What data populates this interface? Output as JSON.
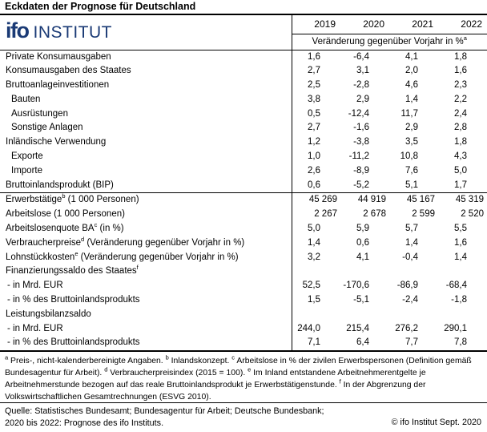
{
  "title": "Eckdaten der Prognose für Deutschland",
  "logo": {
    "bold": "ifo",
    "rest": "INSTITUT"
  },
  "colors": {
    "logo_blue": "#1a3a75",
    "text": "#000000"
  },
  "table": {
    "years": [
      "2019",
      "2020",
      "2021",
      "2022"
    ],
    "subheader": {
      "text": "Veränderung gegenüber Vorjahr in %",
      "sup": "a"
    },
    "rows": [
      {
        "pre": "Private Konsumausgaben",
        "indent": 0,
        "num": "dec",
        "values": [
          "1,6",
          "-6,4",
          "4,1",
          "1,8"
        ]
      },
      {
        "pre": "Konsumausgaben des Staates",
        "indent": 0,
        "num": "dec",
        "values": [
          "2,7",
          "3,1",
          "2,0",
          "1,6"
        ]
      },
      {
        "pre": "Bruttoanlageinvestitionen",
        "indent": 0,
        "num": "dec",
        "values": [
          "2,5",
          "-2,8",
          "4,6",
          "2,3"
        ]
      },
      {
        "pre": "Bauten",
        "indent": 1,
        "num": "dec",
        "values": [
          "3,8",
          "2,9",
          "1,4",
          "2,2"
        ]
      },
      {
        "pre": "Ausrüstungen",
        "indent": 1,
        "num": "dec",
        "values": [
          "0,5",
          "-12,4",
          "11,7",
          "2,4"
        ]
      },
      {
        "pre": "Sonstige Anlagen",
        "indent": 1,
        "num": "dec",
        "values": [
          "2,7",
          "-1,6",
          "2,9",
          "2,8"
        ]
      },
      {
        "pre": "Inländische Verwendung",
        "indent": 0,
        "num": "dec",
        "values": [
          "1,2",
          "-3,8",
          "3,5",
          "1,8"
        ]
      },
      {
        "pre": "Exporte",
        "indent": 1,
        "num": "dec",
        "values": [
          "1,0",
          "-11,2",
          "10,8",
          "4,3"
        ]
      },
      {
        "pre": "Importe",
        "indent": 1,
        "num": "dec",
        "values": [
          "2,6",
          "-8,9",
          "7,6",
          "5,0"
        ]
      },
      {
        "pre": "Bruttoinlandsprodukt (BIP)",
        "indent": 0,
        "num": "dec",
        "values": [
          "0,6",
          "-5,2",
          "5,1",
          "1,7"
        ]
      },
      {
        "pre": "Erwerbstätige",
        "sup": "b",
        "post": " (1 000 Personen)",
        "indent": 0,
        "num": "int",
        "rule": true,
        "values": [
          "45 269",
          "44 919",
          "45 167",
          "45 319"
        ]
      },
      {
        "pre": "Arbeitslose (1 000 Personen)",
        "indent": 0,
        "num": "int",
        "values": [
          "2 267",
          "2 678",
          "2 599",
          "2 520"
        ]
      },
      {
        "pre": "Arbeitslosenquote BA",
        "sup": "c",
        "post": " (in %)",
        "indent": 0,
        "num": "dec",
        "values": [
          "5,0",
          "5,9",
          "5,7",
          "5,5"
        ]
      },
      {
        "pre": "Verbraucherpreise",
        "sup": "d",
        "post": " (Veränderung gegenüber Vorjahr in %)",
        "indent": 0,
        "num": "dec",
        "values": [
          "1,4",
          "0,6",
          "1,4",
          "1,6"
        ]
      },
      {
        "pre": "Lohnstückkosten",
        "sup": "e",
        "post": " (Veränderung gegenüber Vorjahr in %)",
        "indent": 0,
        "num": "dec",
        "values": [
          "3,2",
          "4,1",
          "-0,4",
          "1,4"
        ]
      },
      {
        "pre": "Finanzierungssaldo des Staates",
        "sup": "f",
        "indent": 0,
        "num": "dec",
        "values": [
          "",
          "",
          "",
          ""
        ]
      },
      {
        "pre": "- in Mrd. EUR",
        "indent": 2,
        "num": "dec",
        "values": [
          "52,5",
          "-170,6",
          "-86,9",
          "-68,4"
        ]
      },
      {
        "pre": "- in % des Bruttoinlandsprodukts",
        "indent": 2,
        "num": "dec",
        "values": [
          "1,5",
          "-5,1",
          "-2,4",
          "-1,8"
        ]
      },
      {
        "pre": "Leistungsbilanzsaldo",
        "indent": 0,
        "num": "dec",
        "values": [
          "",
          "",
          "",
          ""
        ]
      },
      {
        "pre": "- in Mrd. EUR",
        "indent": 2,
        "num": "dec",
        "values": [
          "244,0",
          "215,4",
          "276,2",
          "290,1"
        ]
      },
      {
        "pre": "- in % des Bruttoinlandsprodukts",
        "indent": 2,
        "num": "dec",
        "values": [
          "7,1",
          "6,4",
          "7,7",
          "7,8"
        ]
      }
    ]
  },
  "footnotes": [
    {
      "sup": "a",
      "text": "Preis-, nicht-kalenderbereinigte Angaben."
    },
    {
      "sup": "b",
      "text": "Inlandskonzept."
    },
    {
      "sup": "c",
      "text": "Arbeitslose in % der zivilen Erwerbspersonen (Definition gemäß Bundesagentur für Arbeit)."
    },
    {
      "sup": "d",
      "text": "Verbraucherpreisindex (2015 = 100)."
    },
    {
      "sup": "e",
      "text": "Im Inland entstandene Arbeitnehmerentgelte je Arbeitnehmerstunde bezogen auf das reale Bruttoinlandsprodukt je Erwerbstätigenstunde."
    },
    {
      "sup": "f",
      "text": "In der Abgrenzung der Volkswirtschaftlichen Gesamtrechnungen (ESVG 2010)."
    }
  ],
  "source": {
    "lines": [
      "Quelle: Statistisches Bundesamt; Bundesagentur für Arbeit; Deutsche Bundesbank;",
      "2020 bis 2022: Prognose des ifo Instituts."
    ],
    "copyright": "© ifo Institut Sept. 2020"
  }
}
